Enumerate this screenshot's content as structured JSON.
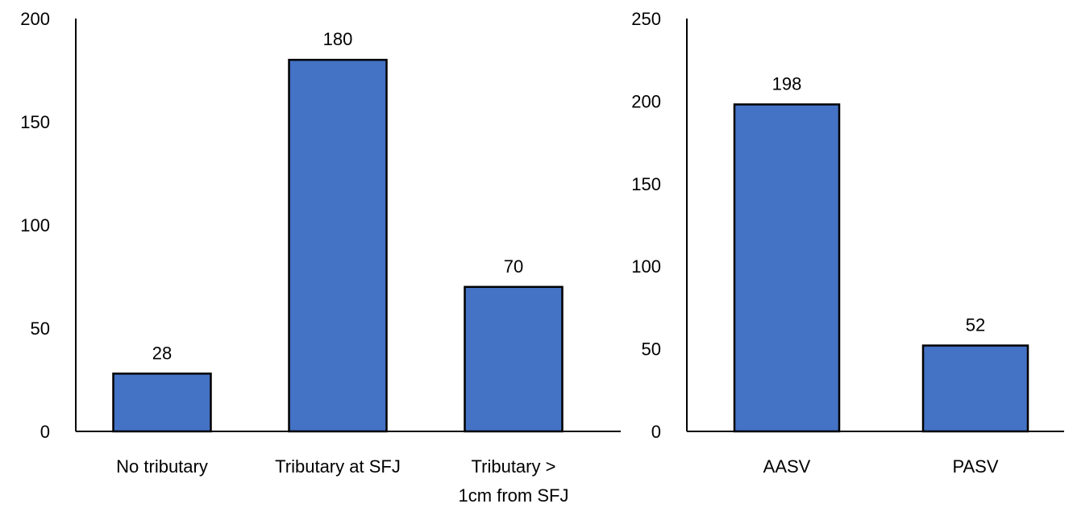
{
  "colors": {
    "bar": "#4472C4",
    "axis": "#000000",
    "background": "#FFFFFF"
  },
  "chart_data": [
    {
      "type": "bar",
      "title": "",
      "xlabel": "",
      "ylabel": "",
      "ylim": [
        0,
        200
      ],
      "yticks": [
        0,
        50,
        100,
        150,
        200
      ],
      "grid": false,
      "legend": "none",
      "categories": [
        [
          "No tributary"
        ],
        [
          "Tributary at SFJ"
        ],
        [
          "Tributary >",
          "1cm from SFJ"
        ]
      ],
      "values": [
        28,
        180,
        70
      ],
      "data_labels": [
        "28",
        "180",
        "70"
      ]
    },
    {
      "type": "bar",
      "title": "",
      "xlabel": "",
      "ylabel": "",
      "ylim": [
        0,
        250
      ],
      "yticks": [
        0,
        50,
        100,
        150,
        200,
        250
      ],
      "grid": false,
      "legend": "none",
      "categories": [
        [
          "AASV"
        ],
        [
          "PASV"
        ]
      ],
      "values": [
        198,
        52
      ],
      "data_labels": [
        "198",
        "52"
      ]
    }
  ]
}
